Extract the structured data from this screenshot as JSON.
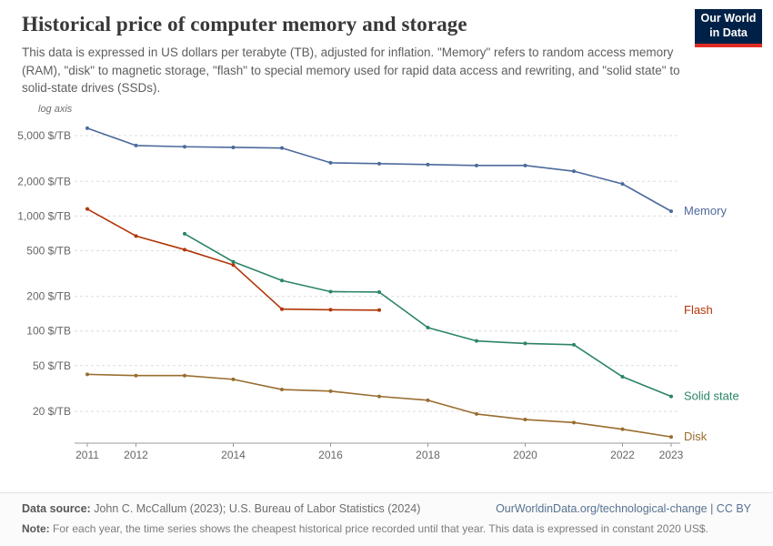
{
  "header": {
    "title": "Historical price of computer memory and storage",
    "subtitle": "This data is expressed in US dollars per terabyte (TB), adjusted for inflation. \"Memory\" refers to random access memory (RAM), \"disk\" to magnetic storage, \"flash\" to special memory used for rapid data access and rewriting, and \"solid state\" to solid-state drives (SSDs).",
    "logo": {
      "line1": "Our World",
      "line2": "in Data",
      "bg": "#002147",
      "accent": "#e02b23"
    }
  },
  "chart_data": {
    "type": "line",
    "log_y": true,
    "axis_note": "log axis",
    "ylabel": "$/TB",
    "ylim": [
      11,
      6000
    ],
    "xlim": [
      2011,
      2023
    ],
    "grid": true,
    "legend_position": "right-end-labels",
    "x_ticks": [
      2011,
      2012,
      2014,
      2016,
      2018,
      2020,
      2022,
      2023
    ],
    "y_ticks": [
      {
        "value": 5000,
        "label": "5,000 $/TB"
      },
      {
        "value": 2000,
        "label": "2,000 $/TB"
      },
      {
        "value": 1000,
        "label": "1,000 $/TB"
      },
      {
        "value": 500,
        "label": "500 $/TB"
      },
      {
        "value": 200,
        "label": "200 $/TB"
      },
      {
        "value": 100,
        "label": "100 $/TB"
      },
      {
        "value": 50,
        "label": "50 $/TB"
      },
      {
        "value": 20,
        "label": "20 $/TB"
      }
    ],
    "series": [
      {
        "name": "Memory",
        "color": "#4c6a9c",
        "points": [
          [
            2011,
            5800
          ],
          [
            2012,
            4100
          ],
          [
            2013,
            4000
          ],
          [
            2014,
            3950
          ],
          [
            2015,
            3900
          ],
          [
            2016,
            2900
          ],
          [
            2017,
            2850
          ],
          [
            2018,
            2800
          ],
          [
            2019,
            2750
          ],
          [
            2020,
            2750
          ],
          [
            2021,
            2450
          ],
          [
            2022,
            1900
          ],
          [
            2023,
            1100
          ]
        ]
      },
      {
        "name": "Flash",
        "color": "#b13507",
        "points": [
          [
            2011,
            1150
          ],
          [
            2012,
            670
          ],
          [
            2013,
            510
          ],
          [
            2014,
            375
          ],
          [
            2015,
            155
          ],
          [
            2016,
            153
          ],
          [
            2017,
            152
          ]
        ]
      },
      {
        "name": "Solid state",
        "color": "#2c8465",
        "points": [
          [
            2013,
            700
          ],
          [
            2014,
            400
          ],
          [
            2015,
            275
          ],
          [
            2016,
            220
          ],
          [
            2017,
            218
          ],
          [
            2018,
            107
          ],
          [
            2019,
            82
          ],
          [
            2020,
            78
          ],
          [
            2021,
            76
          ],
          [
            2022,
            40
          ],
          [
            2023,
            27
          ]
        ]
      },
      {
        "name": "Disk",
        "color": "#996d2f",
        "points": [
          [
            2011,
            42
          ],
          [
            2012,
            41
          ],
          [
            2013,
            41
          ],
          [
            2014,
            38
          ],
          [
            2015,
            31
          ],
          [
            2016,
            30
          ],
          [
            2017,
            27
          ],
          [
            2018,
            25
          ],
          [
            2019,
            19
          ],
          [
            2020,
            17
          ],
          [
            2021,
            16
          ],
          [
            2022,
            14
          ],
          [
            2023,
            12
          ]
        ]
      }
    ]
  },
  "footer": {
    "source_label": "Data source:",
    "source_text": " John C. McCallum (2023); U.S. Bureau of Labor Statistics (2024)",
    "credit": "OurWorldinData.org/technological-change | CC BY",
    "note_label": "Note:",
    "note_text": " For each year, the time series shows the cheapest historical price recorded until that year. This data is expressed in constant 2020 US$."
  }
}
